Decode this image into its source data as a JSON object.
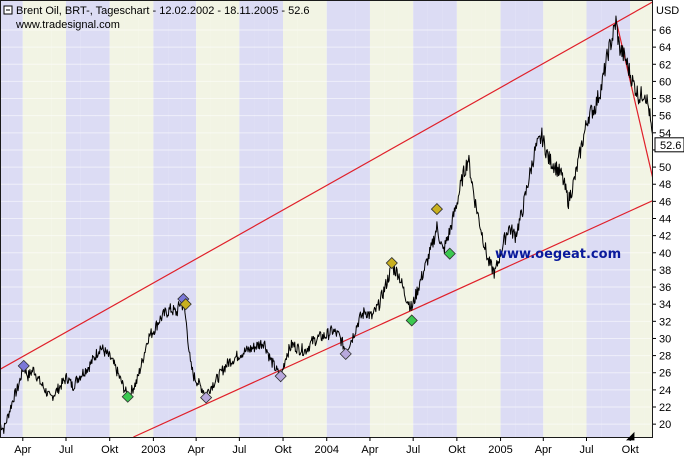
{
  "header": {
    "title": "Brent Oil, BRT-, Tageschart - 12.02.2002 - 18.11.2005 - 52.6",
    "source": "www.tradesignal.com"
  },
  "watermark": "www.oegeat.com",
  "chart_data": {
    "type": "line",
    "title": "Brent Oil, BRT-, Tageschart - 12.02.2002 - 18.11.2005 - 52.6",
    "y_unit": "USD",
    "last_value_label": "52.6",
    "ylim": [
      18.5,
      69.5
    ],
    "y_ticks": [
      20,
      22,
      24,
      26,
      28,
      30,
      32,
      34,
      36,
      38,
      40,
      42,
      44,
      46,
      48,
      50,
      52,
      54,
      56,
      58,
      60,
      62,
      64,
      66
    ],
    "y_tick_labels": [
      "20",
      "22",
      "24",
      "26",
      "28",
      "30",
      "32",
      "34",
      "36",
      "38",
      "40",
      "42",
      "44",
      "46",
      "48",
      "50",
      "",
      "54",
      "56",
      "58",
      "60",
      "62",
      "64",
      "66"
    ],
    "x_range": [
      "2002-02-12",
      "2005-11-18"
    ],
    "x_ticks": [
      {
        "date": "2002-04-01",
        "label": "Apr"
      },
      {
        "date": "2002-07-01",
        "label": "Jul"
      },
      {
        "date": "2002-10-01",
        "label": "Okt"
      },
      {
        "date": "2003-01-01",
        "label": "2003"
      },
      {
        "date": "2003-04-01",
        "label": "Apr"
      },
      {
        "date": "2003-07-01",
        "label": "Jul"
      },
      {
        "date": "2003-10-01",
        "label": "Okt"
      },
      {
        "date": "2004-01-01",
        "label": "2004"
      },
      {
        "date": "2004-04-01",
        "label": "Apr"
      },
      {
        "date": "2004-07-01",
        "label": "Jul"
      },
      {
        "date": "2004-10-01",
        "label": "Okt"
      },
      {
        "date": "2005-01-01",
        "label": "2005"
      },
      {
        "date": "2005-04-01",
        "label": "Apr"
      },
      {
        "date": "2005-07-01",
        "label": "Jul"
      },
      {
        "date": "2005-10-01",
        "label": "Okt"
      }
    ],
    "series": [
      {
        "values": [
          [
            "2002-02-12",
            20.0
          ],
          [
            "2002-02-20",
            19.4
          ],
          [
            "2002-03-01",
            21.0
          ],
          [
            "2002-03-12",
            23.0
          ],
          [
            "2002-03-22",
            24.3
          ],
          [
            "2002-04-03",
            26.8
          ],
          [
            "2002-04-12",
            25.6
          ],
          [
            "2002-04-24",
            26.4
          ],
          [
            "2002-05-06",
            25.0
          ],
          [
            "2002-05-17",
            24.1
          ],
          [
            "2002-05-29",
            23.0
          ],
          [
            "2002-06-10",
            23.8
          ],
          [
            "2002-06-21",
            24.6
          ],
          [
            "2002-07-03",
            25.5
          ],
          [
            "2002-07-15",
            24.4
          ],
          [
            "2002-07-26",
            25.4
          ],
          [
            "2002-08-07",
            26.1
          ],
          [
            "2002-08-19",
            26.8
          ],
          [
            "2002-08-30",
            27.8
          ],
          [
            "2002-09-11",
            29.0
          ],
          [
            "2002-09-23",
            28.3
          ],
          [
            "2002-10-04",
            27.6
          ],
          [
            "2002-10-16",
            26.2
          ],
          [
            "2002-10-28",
            24.6
          ],
          [
            "2002-11-08",
            23.2
          ],
          [
            "2002-11-15",
            23.8
          ],
          [
            "2002-11-27",
            25.0
          ],
          [
            "2002-12-09",
            27.4
          ],
          [
            "2002-12-20",
            30.0
          ],
          [
            "2003-01-02",
            31.0
          ],
          [
            "2003-01-14",
            32.2
          ],
          [
            "2003-01-27",
            33.0
          ],
          [
            "2003-02-07",
            33.4
          ],
          [
            "2003-02-19",
            33.0
          ],
          [
            "2003-02-27",
            34.2
          ],
          [
            "2003-03-07",
            33.6
          ],
          [
            "2003-03-13",
            31.0
          ],
          [
            "2003-03-20",
            27.0
          ],
          [
            "2003-03-27",
            25.6
          ],
          [
            "2003-04-08",
            24.6
          ],
          [
            "2003-04-22",
            23.5
          ],
          [
            "2003-05-05",
            24.6
          ],
          [
            "2003-05-17",
            25.4
          ],
          [
            "2003-05-29",
            26.5
          ],
          [
            "2003-06-10",
            27.3
          ],
          [
            "2003-06-23",
            27.8
          ],
          [
            "2003-07-05",
            28.3
          ],
          [
            "2003-07-18",
            28.6
          ],
          [
            "2003-07-30",
            28.9
          ],
          [
            "2003-08-11",
            29.3
          ],
          [
            "2003-08-22",
            29.6
          ],
          [
            "2003-09-04",
            27.6
          ],
          [
            "2003-09-16",
            26.4
          ],
          [
            "2003-09-26",
            25.4
          ],
          [
            "2003-10-08",
            28.1
          ],
          [
            "2003-10-20",
            29.3
          ],
          [
            "2003-11-03",
            28.8
          ],
          [
            "2003-11-17",
            28.6
          ],
          [
            "2003-12-01",
            29.6
          ],
          [
            "2003-12-15",
            30.1
          ],
          [
            "2003-12-29",
            30.3
          ],
          [
            "2004-01-13",
            30.9
          ],
          [
            "2004-01-27",
            30.3
          ],
          [
            "2004-02-10",
            28.6
          ],
          [
            "2004-02-24",
            30.1
          ],
          [
            "2004-03-09",
            32.2
          ],
          [
            "2004-03-22",
            33.2
          ],
          [
            "2004-04-05",
            32.5
          ],
          [
            "2004-04-19",
            33.8
          ],
          [
            "2004-05-03",
            36.0
          ],
          [
            "2004-05-17",
            38.3
          ],
          [
            "2004-05-31",
            37.6
          ],
          [
            "2004-06-14",
            35.1
          ],
          [
            "2004-06-28",
            33.5
          ],
          [
            "2004-07-12",
            36.0
          ],
          [
            "2004-07-26",
            38.3
          ],
          [
            "2004-08-09",
            40.6
          ],
          [
            "2004-08-20",
            43.0
          ],
          [
            "2004-09-02",
            40.1
          ],
          [
            "2004-09-16",
            42.5
          ],
          [
            "2004-09-30",
            45.6
          ],
          [
            "2004-10-14",
            49.0
          ],
          [
            "2004-10-25",
            51.0
          ],
          [
            "2004-11-08",
            46.1
          ],
          [
            "2004-11-22",
            42.5
          ],
          [
            "2004-12-06",
            39.0
          ],
          [
            "2004-12-20",
            37.6
          ],
          [
            "2005-01-04",
            40.6
          ],
          [
            "2005-01-18",
            43.0
          ],
          [
            "2005-02-01",
            42.0
          ],
          [
            "2005-02-15",
            44.6
          ],
          [
            "2005-03-01",
            48.5
          ],
          [
            "2005-03-15",
            52.0
          ],
          [
            "2005-03-29",
            53.6
          ],
          [
            "2005-04-12",
            51.0
          ],
          [
            "2005-04-26",
            50.1
          ],
          [
            "2005-05-10",
            49.0
          ],
          [
            "2005-05-24",
            46.0
          ],
          [
            "2005-06-07",
            48.8
          ],
          [
            "2005-06-21",
            52.6
          ],
          [
            "2005-07-05",
            56.0
          ],
          [
            "2005-07-19",
            57.0
          ],
          [
            "2005-08-02",
            59.5
          ],
          [
            "2005-08-16",
            63.5
          ],
          [
            "2005-08-24",
            65.0
          ],
          [
            "2005-09-01",
            67.0
          ],
          [
            "2005-09-08",
            64.0
          ],
          [
            "2005-09-22",
            62.5
          ],
          [
            "2005-10-06",
            60.0
          ],
          [
            "2005-10-20",
            58.2
          ],
          [
            "2005-11-01",
            58.8
          ],
          [
            "2005-11-10",
            56.6
          ],
          [
            "2005-11-18",
            52.6
          ]
        ]
      }
    ],
    "channel_lines": [
      [
        [
          "2002-02-12",
          26.4
        ],
        [
          "2005-11-18",
          69.3
        ]
      ],
      [
        [
          "2002-11-20",
          18.5
        ],
        [
          "2005-11-18",
          46.1
        ]
      ],
      [
        [
          "2005-09-01",
          67.2
        ],
        [
          "2005-11-18",
          48.6
        ]
      ]
    ],
    "markers": [
      {
        "date": "2002-04-03",
        "value": 26.8,
        "color": "#7b78d8"
      },
      {
        "date": "2002-11-08",
        "value": 23.2,
        "color": "#3cc850"
      },
      {
        "date": "2003-03-05",
        "value": 34.6,
        "color": "#7b78d8"
      },
      {
        "date": "2003-03-10",
        "value": 34.0,
        "color": "#c8b020"
      },
      {
        "date": "2003-04-22",
        "value": 23.1,
        "color": "#b8a8dc"
      },
      {
        "date": "2003-09-26",
        "value": 25.6,
        "color": "#b8a8dc"
      },
      {
        "date": "2004-02-10",
        "value": 28.2,
        "color": "#b8a8dc"
      },
      {
        "date": "2004-05-17",
        "value": 38.8,
        "color": "#c8b020"
      },
      {
        "date": "2004-06-28",
        "value": 32.1,
        "color": "#3cc850"
      },
      {
        "date": "2004-08-20",
        "value": 45.1,
        "color": "#c8b020"
      },
      {
        "date": "2004-09-16",
        "value": 39.9,
        "color": "#3cc850"
      }
    ],
    "colors": {
      "price": "#000000",
      "channel": "#e0202a",
      "band_dark": "#dcdcf4",
      "band_light": "#f2f4e4",
      "frame": "#1a1a1a"
    }
  }
}
